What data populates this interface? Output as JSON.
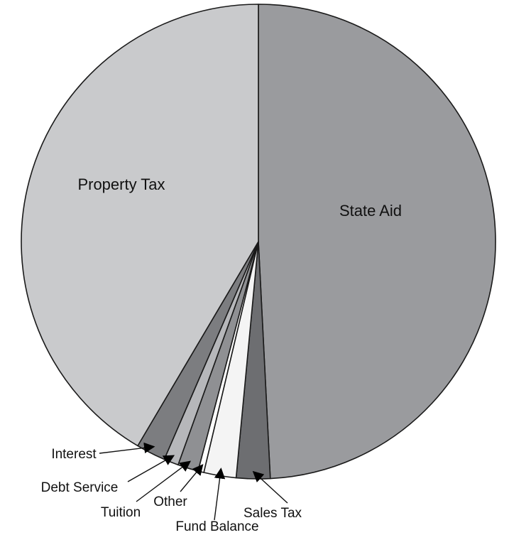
{
  "chart_data": {
    "type": "pie",
    "title": "",
    "legend": "none",
    "slices": [
      {
        "label": "State Aid",
        "value": 49.2,
        "color": "#9a9b9e"
      },
      {
        "label": "Sales Tax",
        "value": 2.3,
        "color": "#6d6e71"
      },
      {
        "label": "Fund Balance",
        "value": 2.2,
        "color": "#f4f4f4"
      },
      {
        "label": "Other",
        "value": 0.4,
        "color": "#ffffff"
      },
      {
        "label": "Tuition",
        "value": 1.4,
        "color": "#8f9093"
      },
      {
        "label": "Debt Service",
        "value": 1.0,
        "color": "#b6b7ba"
      },
      {
        "label": "Interest",
        "value": 2.0,
        "color": "#7c7d80"
      },
      {
        "label": "Property Tax",
        "value": 41.5,
        "color": "#c9cacc"
      }
    ]
  }
}
